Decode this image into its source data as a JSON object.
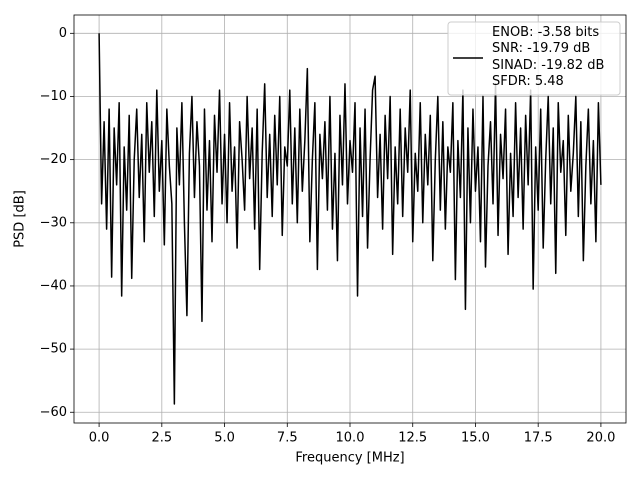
{
  "chart_data": {
    "type": "line",
    "xlabel": "Frequency [MHz]",
    "ylabel": "PSD [dB]",
    "x": [
      0,
      0.1,
      0.2,
      0.3,
      0.4,
      0.5,
      0.6,
      0.7,
      0.8,
      0.9,
      1,
      1.1,
      1.2,
      1.3,
      1.4,
      1.5,
      1.6,
      1.7,
      1.8,
      1.9,
      2,
      2.1,
      2.2,
      2.3,
      2.4,
      2.5,
      2.6,
      2.7,
      2.8,
      2.9,
      3,
      3.1,
      3.2,
      3.3,
      3.4,
      3.5,
      3.6,
      3.7,
      3.8,
      3.9,
      4,
      4.1,
      4.2,
      4.3,
      4.4,
      4.5,
      4.6,
      4.7,
      4.8,
      4.9,
      5,
      5.1,
      5.2,
      5.3,
      5.4,
      5.5,
      5.6,
      5.7,
      5.8,
      5.9,
      6,
      6.1,
      6.2,
      6.3,
      6.4,
      6.5,
      6.6,
      6.7,
      6.8,
      6.9,
      7,
      7.1,
      7.2,
      7.3,
      7.4,
      7.5,
      7.6,
      7.7,
      7.8,
      7.9,
      8,
      8.1,
      8.2,
      8.3,
      8.4,
      8.5,
      8.6,
      8.7,
      8.8,
      8.9,
      9,
      9.1,
      9.2,
      9.3,
      9.4,
      9.5,
      9.6,
      9.7,
      9.8,
      9.9,
      10,
      10.1,
      10.2,
      10.3,
      10.4,
      10.5,
      10.6,
      10.7,
      10.8,
      10.9,
      11,
      11.1,
      11.2,
      11.3,
      11.4,
      11.5,
      11.6,
      11.7,
      11.8,
      11.9,
      12,
      12.1,
      12.2,
      12.3,
      12.4,
      12.5,
      12.6,
      12.7,
      12.8,
      12.9,
      13,
      13.1,
      13.2,
      13.3,
      13.4,
      13.5,
      13.6,
      13.7,
      13.8,
      13.9,
      14,
      14.1,
      14.2,
      14.3,
      14.4,
      14.5,
      14.6,
      14.7,
      14.8,
      14.9,
      15,
      15.1,
      15.2,
      15.3,
      15.4,
      15.5,
      15.6,
      15.7,
      15.8,
      15.9,
      16,
      16.1,
      16.2,
      16.3,
      16.4,
      16.5,
      16.6,
      16.7,
      16.8,
      16.9,
      17,
      17.1,
      17.2,
      17.3,
      17.4,
      17.5,
      17.6,
      17.7,
      17.8,
      17.9,
      18,
      18.1,
      18.2,
      18.3,
      18.4,
      18.5,
      18.6,
      18.7,
      18.8,
      18.9,
      19,
      19.1,
      19.2,
      19.3,
      19.4,
      19.5,
      19.6,
      19.7,
      19.8,
      19.9,
      20
    ],
    "series": [
      {
        "name": "ENOB: -3.58 bits\nSNR: -19.79 dB\nSINAD: -19.82 dB\nSFDR: 5.48",
        "color": "#000000",
        "values": [
          0,
          -27,
          -14,
          -31,
          -12,
          -38.6,
          -15,
          -24,
          -11,
          -41.6,
          -18,
          -28,
          -13,
          -38.8,
          -20,
          -12,
          -26,
          -16,
          -33,
          -11,
          -22,
          -14,
          -29,
          -9,
          -25,
          -17,
          -33.5,
          -12,
          -21,
          -27,
          -58.7,
          -15,
          -24,
          -11,
          -30,
          -44.7,
          -19,
          -10,
          -26,
          -14,
          -21,
          -45.6,
          -12,
          -28,
          -17,
          -33,
          -13,
          -22,
          -9,
          -27,
          -16,
          -30,
          -11,
          -25,
          -18,
          -34,
          -14,
          -20,
          -28,
          -10,
          -23,
          -15,
          -31,
          -12,
          -37.4,
          -19,
          -8,
          -26,
          -16,
          -29,
          -13,
          -24,
          -10,
          -32,
          -18,
          -21,
          -9,
          -27,
          -15,
          -30,
          -12,
          -25,
          -17,
          -5.6,
          -33,
          -20,
          -11,
          -37.4,
          -16,
          -23,
          -14,
          -28,
          -10,
          -31,
          -19,
          -36,
          -13,
          -24,
          -8,
          -27,
          -17,
          -22,
          -11,
          -41.6,
          -15,
          -29,
          -12,
          -34,
          -20,
          -9,
          -6.8,
          -26,
          -16,
          -31,
          -13,
          -23,
          -10,
          -35,
          -18,
          -27,
          -12,
          -29,
          -15,
          -22,
          -9,
          -33,
          -19,
          -25,
          -11,
          -30,
          -16,
          -24,
          -13,
          -36,
          -20,
          -10,
          -28,
          -14,
          -31,
          -18,
          -22,
          -11,
          -39,
          -17,
          -26,
          -9,
          -43.7,
          -15,
          -30,
          -12,
          -25,
          -18,
          -33,
          -10,
          -37,
          -21,
          -14,
          -27,
          -8,
          -32,
          -16,
          -23,
          -12,
          -35,
          -19,
          -29,
          -11,
          -26,
          -15,
          -31,
          -13,
          -24,
          -9,
          -40.5,
          -18,
          -28,
          -12,
          -34,
          -20,
          -10,
          -27,
          -15,
          -38,
          -11,
          -22,
          -17,
          -32,
          -13,
          -25,
          -19,
          -10,
          -29,
          -14,
          -36,
          -21,
          -12,
          -27,
          -17,
          -33,
          -11,
          -24
        ]
      }
    ],
    "xlim": [
      -1,
      21
    ],
    "xticks": [
      {
        "value": 0,
        "label": "0.0"
      },
      {
        "value": 2.5,
        "label": "2.5"
      },
      {
        "value": 5,
        "label": "5.0"
      },
      {
        "value": 7.5,
        "label": "7.5"
      },
      {
        "value": 10,
        "label": "10.0"
      },
      {
        "value": 12.5,
        "label": "12.5"
      },
      {
        "value": 15,
        "label": "15.0"
      },
      {
        "value": 17.5,
        "label": "17.5"
      },
      {
        "value": 20,
        "label": "20.0"
      }
    ],
    "ylim": [
      -61.7,
      2.9
    ],
    "yticks": [
      0,
      {
        "value": -10,
        "label": "−10"
      },
      {
        "value": -20,
        "label": "−20"
      },
      {
        "value": -30,
        "label": "−30"
      },
      {
        "value": -40,
        "label": "−40"
      },
      {
        "value": -50,
        "label": "−50"
      },
      {
        "value": -60,
        "label": "−60"
      }
    ],
    "grid": true,
    "legend": "upper right"
  }
}
